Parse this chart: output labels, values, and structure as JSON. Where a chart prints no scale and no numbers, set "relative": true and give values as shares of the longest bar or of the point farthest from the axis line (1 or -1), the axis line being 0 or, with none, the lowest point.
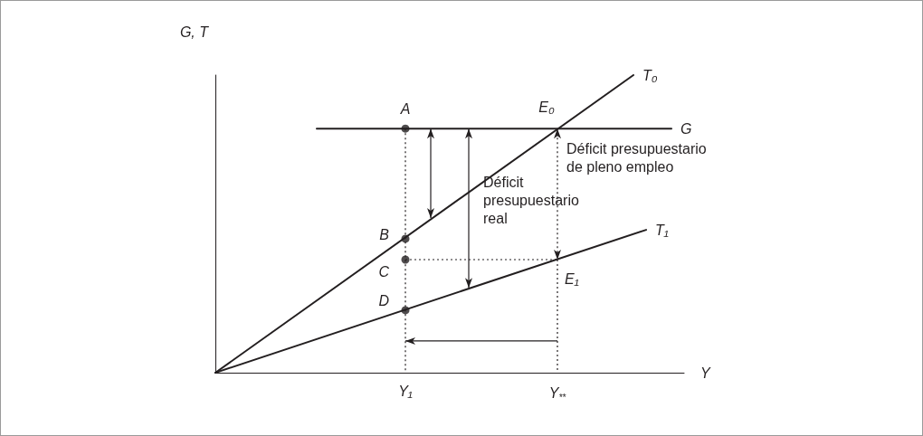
{
  "chart_data": {
    "type": "line",
    "relative": true,
    "xlabel": "Y",
    "ylabel": "G, T",
    "line_style": "solid",
    "marker": "none",
    "legend": false,
    "categories": [
      null,
      null,
      null,
      null,
      null,
      null,
      null,
      null,
      null,
      null,
      null,
      null,
      null,
      null,
      null,
      "Y₁",
      null,
      null,
      null,
      null,
      null,
      null,
      null,
      null,
      null,
      null,
      null,
      "Y$_{**}$",
      null,
      null,
      null,
      null,
      null,
      null,
      null,
      null,
      null,
      null
    ],
    "series": [
      {
        "name": "T₀",
        "color": "#231f20",
        "values": [
          0,
          null,
          null,
          null,
          null,
          null,
          null,
          null,
          null,
          null,
          null,
          null,
          null,
          null,
          null,
          null,
          null,
          null,
          null,
          null,
          null,
          null,
          null,
          null,
          null,
          null,
          null,
          null,
          null,
          null,
          null,
          null,
          null,
          1,
          null,
          null,
          null,
          null
        ]
      },
      {
        "name": "T₁",
        "color": "#231f20",
        "values": [
          0,
          null,
          null,
          null,
          null,
          null,
          null,
          null,
          null,
          null,
          null,
          null,
          null,
          null,
          null,
          null,
          null,
          null,
          null,
          null,
          null,
          null,
          null,
          null,
          null,
          null,
          null,
          null,
          null,
          null,
          null,
          null,
          null,
          null,
          0.48,
          null,
          null,
          null
        ]
      },
      {
        "name": "G",
        "color": "#231f20",
        "values": [
          null,
          null,
          null,
          null,
          null,
          null,
          null,
          null,
          0.82,
          null,
          null,
          null,
          null,
          null,
          null,
          null,
          null,
          null,
          null,
          null,
          null,
          null,
          null,
          null,
          null,
          null,
          null,
          null,
          null,
          null,
          null,
          null,
          null,
          null,
          null,
          null,
          0.82,
          null
        ]
      },
      {
        "type": "scatter",
        "marker": "circle",
        "color": "#231f20",
        "x": [
          "Y₁",
          "Y₁",
          "Y₁",
          "Y₁"
        ],
        "values": [
          0.82,
          0.45,
          0.38,
          0.21
        ]
      }
    ],
    "annotations": [
      {
        "text": "A",
        "x": "Y₁",
        "y": 0.82
      },
      {
        "text": "B",
        "x": "Y₁",
        "y": 0.45
      },
      {
        "text": "C",
        "x": "Y₁",
        "y": 0.38
      },
      {
        "text": "D",
        "x": "Y₁",
        "y": 0.21
      },
      {
        "text": "E₀",
        "x": "Y$_{**}$",
        "y": 0.82
      },
      {
        "text": "E₁",
        "x": "Y$_{**}$",
        "y": 0.38
      },
      "Déficit presupuestario real",
      "Déficit presupuestario de pleno empleo"
    ]
  }
}
